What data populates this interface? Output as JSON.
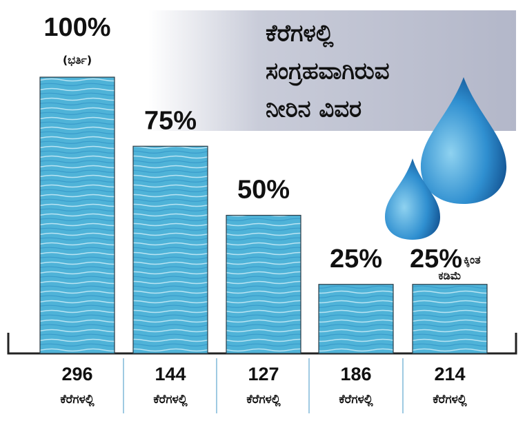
{
  "chart_data": {
    "type": "bar",
    "title": [
      "ಕೆರೆಗಳಲ್ಲಿ",
      "ಸಂಗ್ರಹವಾಗಿರುವ",
      "ನೀರಿನ ವಿವರ"
    ],
    "values": [
      100,
      75,
      50,
      25,
      25
    ],
    "value_labels": [
      "100%",
      "75%",
      "50%",
      "25%",
      "25%"
    ],
    "full_note": "(ಭರ್ತಿ)",
    "less_than_note": [
      "ಕ್ಕಿಂತ",
      "ಕಡಿಮೆ"
    ],
    "lake_counts": [
      296,
      144,
      127,
      186,
      214
    ],
    "count_unit": "ಕೆರೆಗಳಲ್ಲಿ",
    "color": "#4fb3d8"
  }
}
